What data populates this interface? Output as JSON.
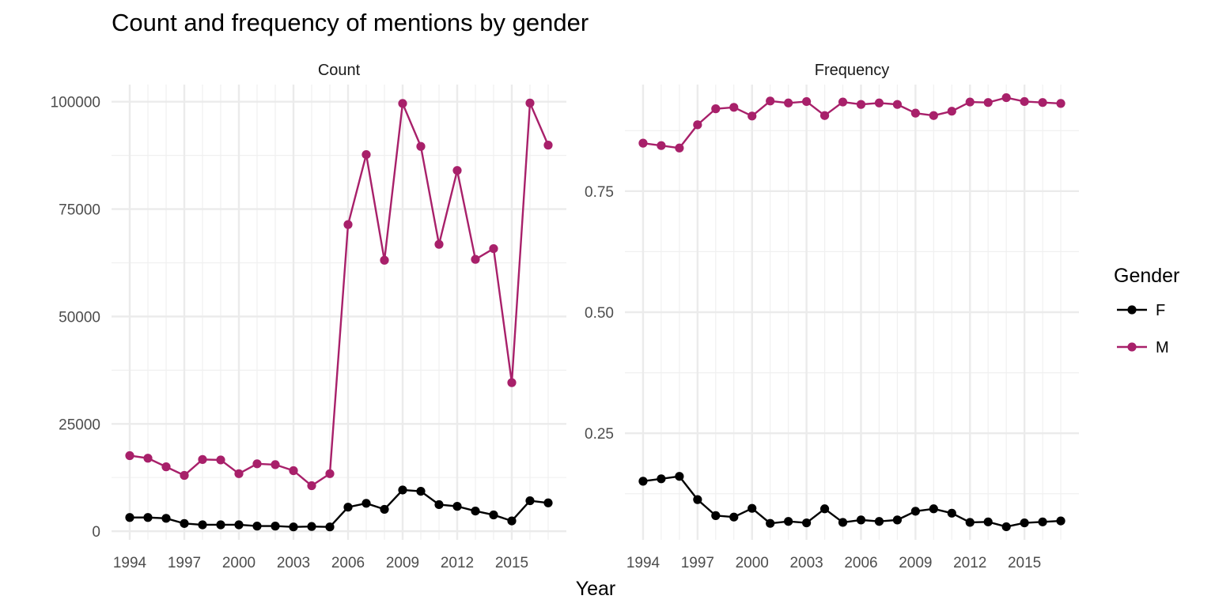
{
  "chart_data": {
    "type": "line",
    "title": "Count and frequency of mentions by gender",
    "xlabel": "Year",
    "legend": {
      "title": "Gender",
      "placement": "right"
    },
    "series_styles": [
      {
        "name": "F",
        "color": "#000000"
      },
      {
        "name": "M",
        "color": "#A8206A"
      }
    ],
    "years": [
      1994,
      1995,
      1996,
      1997,
      1998,
      1999,
      2000,
      2001,
      2002,
      2003,
      2004,
      2005,
      2006,
      2007,
      2008,
      2009,
      2010,
      2011,
      2012,
      2013,
      2014,
      2015,
      2016,
      2017
    ],
    "x_tick_labels": [
      "1994",
      "1997",
      "2000",
      "2003",
      "2006",
      "2009",
      "2012",
      "2015"
    ],
    "grid": true,
    "panels": [
      {
        "strip": "Count",
        "ylim": [
          -2000,
          104000
        ],
        "y_ticks": [
          0,
          25000,
          50000,
          75000,
          100000
        ],
        "y_tick_labels": [
          "0",
          "25000",
          "50000",
          "75000",
          "100000"
        ],
        "series": [
          {
            "name": "F",
            "values": [
              3200,
              3200,
              3000,
              1800,
              1500,
              1500,
              1500,
              1200,
              1200,
              1000,
              1100,
              1000,
              5600,
              6500,
              5100,
              9600,
              9300,
              6200,
              5800,
              4700,
              3800,
              2400,
              7100,
              6600
            ]
          },
          {
            "name": "M",
            "values": [
              17600,
              17000,
              15000,
              13000,
              16700,
              16600,
              13400,
              15700,
              15500,
              14100,
              10600,
              13400,
              71400,
              87700,
              63100,
              99600,
              89600,
              66800,
              84000,
              63300,
              65800,
              34600,
              99700,
              89900
            ]
          }
        ]
      },
      {
        "strip": "Frequency",
        "ylim": [
          0.03,
          0.97
        ],
        "y_ticks": [
          0.25,
          0.5,
          0.75
        ],
        "y_tick_labels": [
          "0.25",
          "0.50",
          "0.75"
        ],
        "series": [
          {
            "name": "F",
            "values": [
              0.151,
              0.156,
              0.161,
              0.113,
              0.08,
              0.077,
              0.095,
              0.064,
              0.068,
              0.065,
              0.094,
              0.066,
              0.071,
              0.068,
              0.071,
              0.089,
              0.094,
              0.085,
              0.066,
              0.067,
              0.057,
              0.065,
              0.067,
              0.069
            ]
          },
          {
            "name": "M",
            "values": [
              0.849,
              0.844,
              0.839,
              0.887,
              0.92,
              0.923,
              0.905,
              0.936,
              0.932,
              0.935,
              0.906,
              0.934,
              0.929,
              0.932,
              0.929,
              0.911,
              0.906,
              0.915,
              0.934,
              0.933,
              0.943,
              0.935,
              0.933,
              0.931
            ]
          }
        ]
      }
    ]
  }
}
